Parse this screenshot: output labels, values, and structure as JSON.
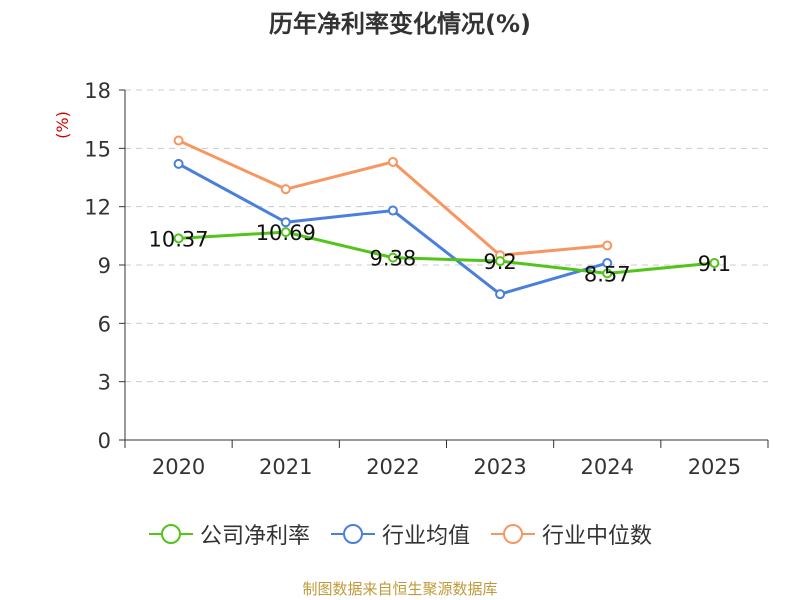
{
  "chart_data": {
    "type": "line",
    "title": "历年净利率变化情况(%)",
    "ylabel": "(%)",
    "xlabel": "",
    "categories": [
      "2020",
      "2021",
      "2022",
      "2023",
      "2024",
      "2025"
    ],
    "ylim": [
      0,
      18
    ],
    "yticks": [
      0,
      3,
      6,
      9,
      12,
      15,
      18
    ],
    "grid": true,
    "legend_position": "bottom",
    "series": [
      {
        "name": "公司净利率",
        "color": "#52c41a",
        "values": [
          10.37,
          10.69,
          9.38,
          9.2,
          8.57,
          9.1
        ],
        "labels": [
          "10.37",
          "10.69",
          "9.38",
          "9.2",
          "8.57",
          "9.1"
        ]
      },
      {
        "name": "行业均值",
        "color": "#4a7fdc",
        "values": [
          14.2,
          11.2,
          11.8,
          7.5,
          9.1,
          null
        ]
      },
      {
        "name": "行业中位数",
        "color": "#f79660",
        "values": [
          15.4,
          12.9,
          14.3,
          9.5,
          10.0,
          null
        ]
      }
    ]
  },
  "footer": "制图数据来自恒生聚源数据库"
}
